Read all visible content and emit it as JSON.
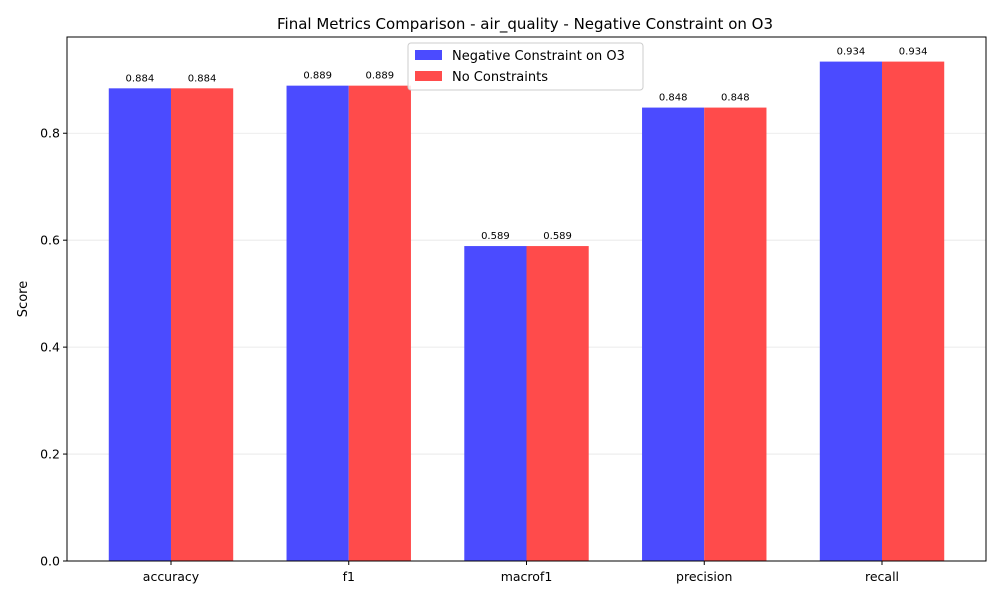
{
  "chart_data": {
    "type": "bar",
    "title": "Final Metrics Comparison - air_quality - Negative Constraint on O3",
    "xlabel": "",
    "ylabel": "Score",
    "categories": [
      "accuracy",
      "f1",
      "macrof1",
      "precision",
      "recall"
    ],
    "series": [
      {
        "name": "Negative Constraint on O3",
        "values": [
          0.884,
          0.889,
          0.589,
          0.848,
          0.934
        ],
        "color": "#4b4bff"
      },
      {
        "name": "No Constraints",
        "values": [
          0.884,
          0.889,
          0.589,
          0.848,
          0.934
        ],
        "color": "#ff4b4b"
      }
    ],
    "value_labels": [
      [
        "0.884",
        "0.889",
        "0.589",
        "0.848",
        "0.934"
      ],
      [
        "0.884",
        "0.889",
        "0.589",
        "0.848",
        "0.934"
      ]
    ],
    "ylim": [
      0,
      0.98
    ],
    "yticks": [
      0.0,
      0.2,
      0.4,
      0.6,
      0.8
    ],
    "ytick_labels": [
      "0.0",
      "0.2",
      "0.4",
      "0.6",
      "0.8"
    ],
    "grid": "y",
    "legend_position": "top-center"
  }
}
